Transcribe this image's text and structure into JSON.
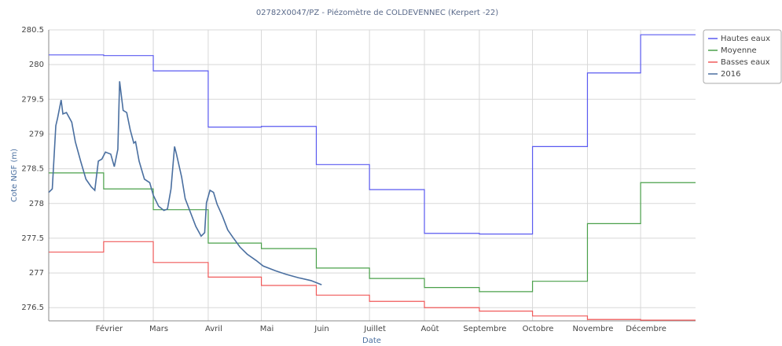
{
  "chart_data": {
    "type": "line",
    "title": "02782X0047/PZ - Piézomètre de COLDEVENNEC (Kerpert -22)",
    "xlabel": "Date",
    "ylabel": "Cote NGF (m)",
    "xlim": [
      0,
      365
    ],
    "ylim": [
      276.31,
      280.5
    ],
    "xticks": [
      {
        "value": 31,
        "label": "Février"
      },
      {
        "value": 59,
        "label": "Mars"
      },
      {
        "value": 90,
        "label": "Avril"
      },
      {
        "value": 120,
        "label": "Mai"
      },
      {
        "value": 151,
        "label": "Juin"
      },
      {
        "value": 181,
        "label": "Juillet"
      },
      {
        "value": 212,
        "label": "Août"
      },
      {
        "value": 243,
        "label": "Septembre"
      },
      {
        "value": 273,
        "label": "Octobre"
      },
      {
        "value": 304,
        "label": "Novembre"
      },
      {
        "value": 334,
        "label": "Décembre"
      }
    ],
    "yticks": [
      276.5,
      277,
      277.5,
      278,
      278.5,
      279,
      279.5,
      280,
      280.5
    ],
    "grid": true,
    "legend": "right",
    "series": [
      {
        "name": "Hautes eaux",
        "color": "#5a5af0",
        "step": true,
        "x": [
          0,
          31,
          59,
          90,
          120,
          151,
          181,
          212,
          243,
          273,
          304,
          334
        ],
        "values": [
          280.14,
          280.13,
          279.91,
          279.1,
          279.11,
          278.56,
          278.2,
          277.57,
          277.56,
          278.82,
          279.88,
          280.43
        ]
      },
      {
        "name": "Moyenne",
        "color": "#4aa04a",
        "step": true,
        "x": [
          0,
          31,
          59,
          90,
          120,
          151,
          181,
          212,
          243,
          273,
          304,
          334
        ],
        "values": [
          278.44,
          278.21,
          277.91,
          277.43,
          277.35,
          277.07,
          276.92,
          276.79,
          276.73,
          276.88,
          277.71,
          278.3
        ]
      },
      {
        "name": "Basses eaux",
        "color": "#f05a5a",
        "step": true,
        "x": [
          0,
          31,
          59,
          90,
          120,
          151,
          181,
          212,
          243,
          273,
          304,
          334
        ],
        "values": [
          277.3,
          277.45,
          277.15,
          276.94,
          276.82,
          276.68,
          276.59,
          276.5,
          276.45,
          276.38,
          276.33,
          276.32
        ]
      },
      {
        "name": "2016",
        "color": "#4a6fa0",
        "step": false,
        "x": [
          0,
          2,
          4,
          5,
          7,
          8,
          10,
          13,
          15,
          18,
          21,
          24,
          26,
          28,
          30,
          32,
          35,
          37,
          39,
          40,
          42,
          44,
          46,
          48,
          49,
          51,
          54,
          57,
          59,
          62,
          65,
          67,
          69,
          71,
          72,
          75,
          77,
          80,
          83,
          86,
          88,
          89,
          91,
          93,
          95,
          98,
          101,
          104,
          108,
          112,
          117,
          121,
          128,
          134,
          141,
          148,
          154
        ],
        "values": [
          278.16,
          278.21,
          279.12,
          279.23,
          279.49,
          279.29,
          279.31,
          279.17,
          278.89,
          278.61,
          278.35,
          278.24,
          278.19,
          278.61,
          278.64,
          278.74,
          278.71,
          278.53,
          278.78,
          279.76,
          279.34,
          279.31,
          279.06,
          278.87,
          278.89,
          278.61,
          278.35,
          278.3,
          278.12,
          277.96,
          277.9,
          277.92,
          278.21,
          278.82,
          278.72,
          278.38,
          278.07,
          277.87,
          277.67,
          277.53,
          277.58,
          278.01,
          278.19,
          278.16,
          277.99,
          277.82,
          277.62,
          277.51,
          277.37,
          277.27,
          277.18,
          277.1,
          277.03,
          276.98,
          276.93,
          276.89,
          276.83
        ]
      }
    ]
  }
}
